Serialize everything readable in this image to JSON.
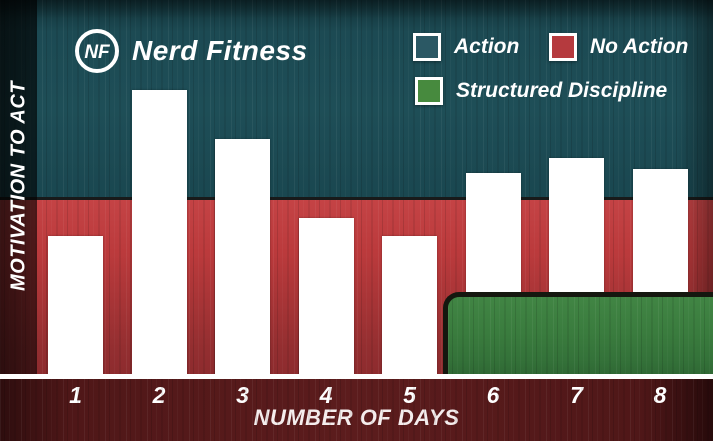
{
  "brand": {
    "monogram": "NF",
    "name": "Nerd Fitness"
  },
  "legend": [
    {
      "label": "Action",
      "color": "#2b5864"
    },
    {
      "label": "No Action",
      "color": "#b53a3e"
    },
    {
      "label": "Structured Discipline",
      "color": "#478a3e"
    }
  ],
  "axes": {
    "ylabel": "MOTIVATION TO ACT",
    "xlabel": "NUMBER OF DAYS"
  },
  "chart_data": {
    "type": "bar",
    "title": "",
    "categories": [
      "1",
      "2",
      "3",
      "4",
      "5",
      "6",
      "7",
      "8"
    ],
    "values": [
      37,
      76,
      63,
      42,
      37,
      54,
      58,
      55
    ],
    "xlabel": "NUMBER OF DAYS",
    "ylabel": "MOTIVATION TO ACT",
    "ylim": [
      0,
      100
    ],
    "bar_color": "#ffffff",
    "grid": false,
    "legend_position": "top-right",
    "zones": [
      {
        "name": "Action",
        "color": "#1e4e57",
        "extent": "background above motivation 47"
      },
      {
        "name": "No Action",
        "color": "#bb3a3c",
        "extent": "background band from motivation 0 to 47"
      },
      {
        "name": "Structured Discipline",
        "color": "#3a7c3e",
        "extent": "floor from motivation 0 to 21 under days 6-8"
      }
    ]
  },
  "palette": {
    "action_teal": "#1e4e57",
    "no_action_red": "#bb3a3c",
    "discipline_green": "#3a7c3e",
    "bar_white": "#ffffff",
    "footer_maroon": "#5c1c1d",
    "axis_white": "#ffffff"
  }
}
